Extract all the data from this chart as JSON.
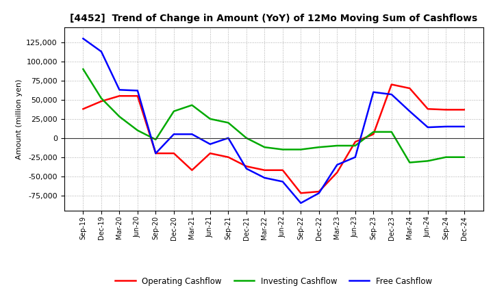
{
  "title": "[4452]  Trend of Change in Amount (YoY) of 12Mo Moving Sum of Cashflows",
  "ylabel": "Amount (million yen)",
  "x_labels": [
    "Sep-19",
    "Dec-19",
    "Mar-20",
    "Jun-20",
    "Sep-20",
    "Dec-20",
    "Mar-21",
    "Jun-21",
    "Sep-21",
    "Dec-21",
    "Mar-22",
    "Jun-22",
    "Sep-22",
    "Dec-22",
    "Mar-23",
    "Jun-23",
    "Sep-23",
    "Dec-23",
    "Mar-24",
    "Jun-24",
    "Sep-24",
    "Dec-24"
  ],
  "operating": [
    38000,
    48000,
    55000,
    55000,
    -20000,
    -20000,
    -42000,
    -20000,
    -25000,
    -37000,
    -42000,
    -42000,
    -72000,
    -70000,
    -45000,
    -5000,
    5000,
    70000,
    65000,
    38000,
    37000,
    37000
  ],
  "investing": [
    90000,
    52000,
    28000,
    10000,
    -2000,
    35000,
    43000,
    25000,
    20000,
    0,
    -12000,
    -15000,
    -15000,
    -12000,
    -10000,
    -10000,
    8000,
    8000,
    -32000,
    -30000,
    -25000,
    -25000
  ],
  "free": [
    130000,
    113000,
    63000,
    62000,
    -20000,
    5000,
    5000,
    -8000,
    0,
    -40000,
    -52000,
    -57000,
    -85000,
    -72000,
    -35000,
    -25000,
    60000,
    57000,
    35000,
    14000,
    15000,
    15000
  ],
  "operating_color": "#ff0000",
  "investing_color": "#00aa00",
  "free_color": "#0000ff",
  "ylim": [
    -95000,
    145000
  ],
  "yticks": [
    -75000,
    -50000,
    -25000,
    0,
    25000,
    50000,
    75000,
    100000,
    125000
  ],
  "background_color": "#ffffff",
  "grid_color": "#aaaaaa"
}
